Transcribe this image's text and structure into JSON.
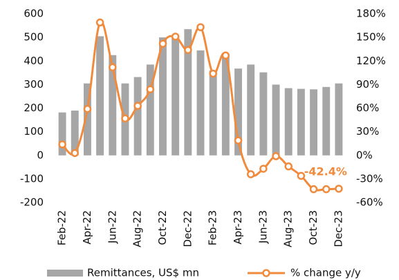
{
  "chart_data": {
    "type": "bar-line",
    "categories": [
      "Feb-22",
      null,
      "Apr-22",
      null,
      "Jun-22",
      null,
      "Aug-22",
      null,
      "Oct-22",
      null,
      "Dec-22",
      null,
      "Feb-23",
      null,
      "Apr-23",
      null,
      "Jun-23",
      null,
      "Aug-23",
      null,
      "Oct-23",
      null,
      "Dec-23"
    ],
    "series": [
      {
        "name": "Remittances, US$ mn",
        "type": "bar",
        "color": "#a6a6a6",
        "values": [
          182,
          190,
          305,
          505,
          425,
          305,
          332,
          385,
          500,
          505,
          535,
          445,
          360,
          420,
          368,
          385,
          352,
          300,
          285,
          282,
          280,
          290,
          305
        ]
      },
      {
        "name": "% change y/y",
        "type": "line",
        "axis": "y2",
        "color": "#f08a3c",
        "values": [
          14,
          3,
          59,
          169,
          112,
          47,
          63,
          84,
          142,
          151,
          134,
          163,
          104,
          127,
          19,
          -24,
          -17,
          -1,
          -14,
          -26,
          -43,
          -43,
          -42.4
        ],
        "value_labels": [
          null,
          null,
          null,
          null,
          null,
          null,
          null,
          null,
          null,
          null,
          null,
          null,
          null,
          null,
          null,
          null,
          null,
          null,
          null,
          null,
          null,
          null,
          "-42.4%"
        ]
      }
    ],
    "ylim": [
      -200,
      600
    ],
    "yticks": [
      -200,
      -100,
      0,
      100,
      200,
      300,
      400,
      500,
      600
    ],
    "y2lim": [
      -60,
      180
    ],
    "y2ticks": [
      {
        "value": -60,
        "label": "-60%"
      },
      {
        "value": -30,
        "label": "-30%"
      },
      {
        "value": 0,
        "label": "0%"
      },
      {
        "value": 30,
        "label": "30%"
      },
      {
        "value": 60,
        "label": "60%"
      },
      {
        "value": 90,
        "label": "90%"
      },
      {
        "value": 120,
        "label": "120%"
      },
      {
        "value": 150,
        "label": "150%"
      },
      {
        "value": 180,
        "label": "180%"
      }
    ],
    "grid": false,
    "legend": "bottom"
  }
}
